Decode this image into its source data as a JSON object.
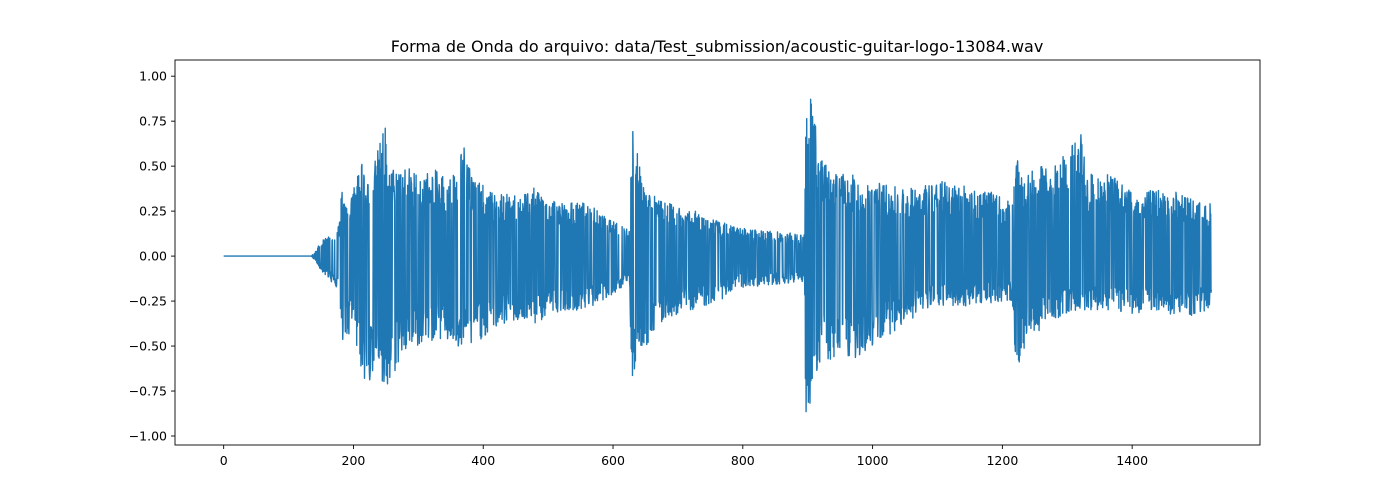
{
  "chart_data": {
    "type": "line",
    "title": "Forma de Onda do arquivo: data/Test_submission/acoustic-guitar-logo-13084.wav",
    "xlabel": "",
    "ylabel": "",
    "xlim": [
      -75,
      1597
    ],
    "ylim": [
      -1.05,
      1.09
    ],
    "grid": false,
    "series_color": "#1f77b4",
    "x_ticks": [
      {
        "value": 0,
        "label": "0"
      },
      {
        "value": 200,
        "label": "200"
      },
      {
        "value": 400,
        "label": "400"
      },
      {
        "value": 600,
        "label": "600"
      },
      {
        "value": 800,
        "label": "800"
      },
      {
        "value": 1000,
        "label": "1000"
      },
      {
        "value": 1200,
        "label": "1200"
      },
      {
        "value": 1400,
        "label": "1400"
      }
    ],
    "y_ticks": [
      {
        "value": 1.0,
        "label": "1.00"
      },
      {
        "value": 0.75,
        "label": "0.75"
      },
      {
        "value": 0.5,
        "label": "0.50"
      },
      {
        "value": 0.25,
        "label": "0.25"
      },
      {
        "value": 0.0,
        "label": "0.00"
      },
      {
        "value": -0.25,
        "label": "−0.25"
      },
      {
        "value": -0.5,
        "label": "−0.50"
      },
      {
        "value": -0.75,
        "label": "−0.75"
      },
      {
        "value": -1.0,
        "label": "−1.00"
      }
    ],
    "envelope": {
      "x_start": 0,
      "x_end": 1522,
      "upper": [
        [
          0,
          0.0
        ],
        [
          135,
          0.0
        ],
        [
          140,
          0.02
        ],
        [
          150,
          0.08
        ],
        [
          165,
          0.14
        ],
        [
          178,
          0.18
        ],
        [
          182,
          0.46
        ],
        [
          185,
          0.3
        ],
        [
          200,
          0.38
        ],
        [
          212,
          0.6
        ],
        [
          220,
          0.4
        ],
        [
          235,
          0.55
        ],
        [
          248,
          0.77
        ],
        [
          255,
          0.48
        ],
        [
          275,
          0.52
        ],
        [
          300,
          0.46
        ],
        [
          330,
          0.48
        ],
        [
          350,
          0.44
        ],
        [
          370,
          0.63
        ],
        [
          385,
          0.44
        ],
        [
          410,
          0.36
        ],
        [
          445,
          0.34
        ],
        [
          480,
          0.38
        ],
        [
          520,
          0.3
        ],
        [
          560,
          0.3
        ],
        [
          595,
          0.2
        ],
        [
          625,
          0.16
        ],
        [
          630,
          0.77
        ],
        [
          636,
          0.6
        ],
        [
          645,
          0.45
        ],
        [
          655,
          0.36
        ],
        [
          680,
          0.3
        ],
        [
          720,
          0.26
        ],
        [
          760,
          0.2
        ],
        [
          790,
          0.16
        ],
        [
          895,
          0.12
        ],
        [
          897,
          0.96
        ],
        [
          905,
          0.98
        ],
        [
          915,
          0.62
        ],
        [
          925,
          0.52
        ],
        [
          940,
          0.48
        ],
        [
          980,
          0.44
        ],
        [
          1020,
          0.4
        ],
        [
          1060,
          0.38
        ],
        [
          1100,
          0.42
        ],
        [
          1140,
          0.4
        ],
        [
          1180,
          0.36
        ],
        [
          1215,
          0.3
        ],
        [
          1222,
          0.54
        ],
        [
          1235,
          0.45
        ],
        [
          1260,
          0.5
        ],
        [
          1280,
          0.5
        ],
        [
          1325,
          0.72
        ],
        [
          1330,
          0.45
        ],
        [
          1360,
          0.47
        ],
        [
          1400,
          0.36
        ],
        [
          1440,
          0.37
        ],
        [
          1480,
          0.35
        ],
        [
          1500,
          0.3
        ],
        [
          1522,
          0.3
        ]
      ],
      "lower": [
        [
          0,
          0.0
        ],
        [
          135,
          0.0
        ],
        [
          140,
          -0.02
        ],
        [
          150,
          -0.08
        ],
        [
          165,
          -0.14
        ],
        [
          178,
          -0.2
        ],
        [
          182,
          -0.48
        ],
        [
          200,
          -0.44
        ],
        [
          210,
          -0.6
        ],
        [
          220,
          -0.75
        ],
        [
          235,
          -0.6
        ],
        [
          250,
          -0.83
        ],
        [
          258,
          -0.7
        ],
        [
          275,
          -0.55
        ],
        [
          300,
          -0.5
        ],
        [
          330,
          -0.46
        ],
        [
          355,
          -0.5
        ],
        [
          370,
          -0.55
        ],
        [
          390,
          -0.48
        ],
        [
          420,
          -0.4
        ],
        [
          450,
          -0.36
        ],
        [
          480,
          -0.38
        ],
        [
          520,
          -0.3
        ],
        [
          560,
          -0.3
        ],
        [
          595,
          -0.22
        ],
        [
          625,
          -0.16
        ],
        [
          630,
          -0.79
        ],
        [
          636,
          -0.55
        ],
        [
          645,
          -0.5
        ],
        [
          655,
          -0.5
        ],
        [
          680,
          -0.35
        ],
        [
          720,
          -0.3
        ],
        [
          760,
          -0.26
        ],
        [
          790,
          -0.18
        ],
        [
          895,
          -0.14
        ],
        [
          897,
          -0.95
        ],
        [
          905,
          -0.85
        ],
        [
          915,
          -0.62
        ],
        [
          925,
          -0.57
        ],
        [
          940,
          -0.6
        ],
        [
          980,
          -0.56
        ],
        [
          1020,
          -0.45
        ],
        [
          1060,
          -0.35
        ],
        [
          1100,
          -0.28
        ],
        [
          1140,
          -0.28
        ],
        [
          1180,
          -0.26
        ],
        [
          1215,
          -0.25
        ],
        [
          1222,
          -0.7
        ],
        [
          1235,
          -0.5
        ],
        [
          1260,
          -0.4
        ],
        [
          1280,
          -0.35
        ],
        [
          1320,
          -0.3
        ],
        [
          1360,
          -0.3
        ],
        [
          1400,
          -0.32
        ],
        [
          1440,
          -0.3
        ],
        [
          1480,
          -0.35
        ],
        [
          1500,
          -0.32
        ],
        [
          1522,
          -0.3
        ]
      ]
    }
  }
}
